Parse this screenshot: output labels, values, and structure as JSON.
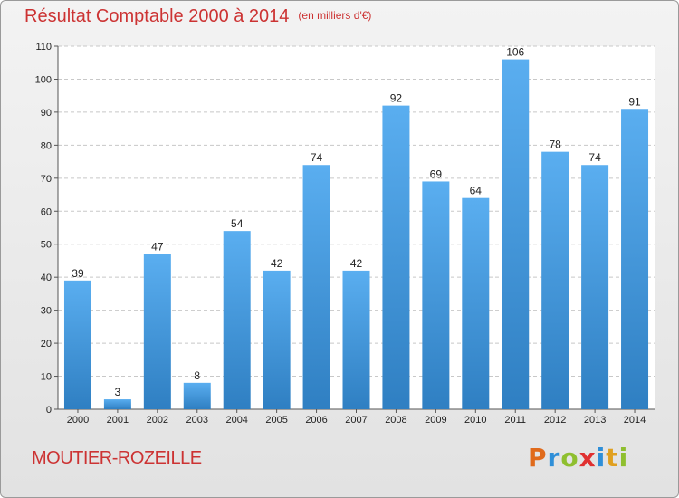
{
  "header": {
    "title": "Résultat Comptable 2000 à 2014",
    "subtitle": "(en milliers d'€)"
  },
  "footer": {
    "commune": "MOUTIER-ROZEILLE",
    "logo": "Proxiti"
  },
  "colors": {
    "title": "#cc3333",
    "bar_top": "#5aaef0",
    "bar_bottom": "#2f7fc2"
  },
  "chart_data": {
    "type": "bar",
    "categories": [
      "2000",
      "2001",
      "2002",
      "2003",
      "2004",
      "2005",
      "2006",
      "2007",
      "2008",
      "2009",
      "2010",
      "2011",
      "2012",
      "2013",
      "2014"
    ],
    "values": [
      39,
      3,
      47,
      8,
      54,
      42,
      74,
      42,
      92,
      69,
      64,
      106,
      78,
      74,
      91
    ],
    "ylim": [
      0,
      110
    ],
    "yticks": [
      0,
      10,
      20,
      30,
      40,
      50,
      60,
      70,
      80,
      90,
      100,
      110
    ],
    "grid": true,
    "xlabel": "",
    "ylabel": ""
  }
}
